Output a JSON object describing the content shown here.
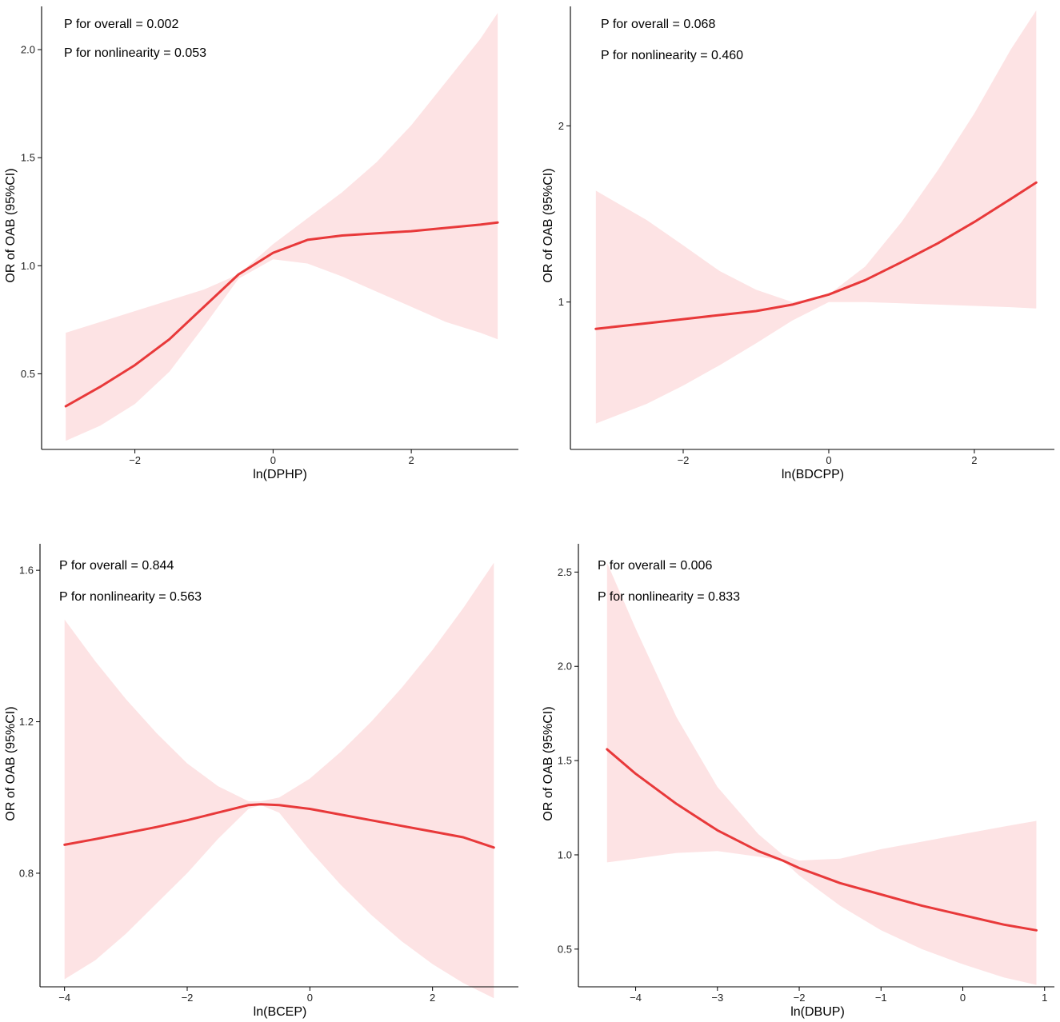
{
  "chart_data": [
    {
      "id": "dphp",
      "type": "line",
      "xlabel": "ln(DPHP)",
      "ylabel": "OR of OAB (95%CI)",
      "xlim": [
        -3.35,
        3.55
      ],
      "ylim": [
        0.15,
        2.2
      ],
      "yscale": "linear",
      "xticks": [
        -2,
        0,
        2
      ],
      "xtick_labels": [
        "−2",
        "0",
        "2"
      ],
      "yticks": [
        0.5,
        1.0,
        1.5,
        2.0
      ],
      "ytick_labels": [
        "0.5",
        "1.0",
        "1.5",
        "2.0"
      ],
      "annotations": [
        "P for overall = 0.002",
        "P for nonlinearity = 0.053"
      ],
      "band_color": "#fde3e4",
      "line_color": "#e8393a",
      "series": [
        {
          "name": "OR",
          "x": [
            -3.0,
            -2.5,
            -2.0,
            -1.5,
            -1.0,
            -0.5,
            0.0,
            0.5,
            1.0,
            1.5,
            2.0,
            2.5,
            3.0,
            3.25
          ],
          "y": [
            0.35,
            0.44,
            0.54,
            0.66,
            0.81,
            0.96,
            1.06,
            1.12,
            1.14,
            1.15,
            1.16,
            1.175,
            1.19,
            1.2
          ]
        },
        {
          "name": "Upper 95%CI",
          "x": [
            -3.0,
            -2.5,
            -2.0,
            -1.5,
            -1.0,
            -0.5,
            0.0,
            0.5,
            1.0,
            1.5,
            2.0,
            2.5,
            3.0,
            3.25
          ],
          "y": [
            0.69,
            0.74,
            0.79,
            0.84,
            0.89,
            0.96,
            1.1,
            1.22,
            1.34,
            1.48,
            1.65,
            1.85,
            2.05,
            2.17
          ]
        },
        {
          "name": "Lower 95%CI",
          "x": [
            -3.0,
            -2.5,
            -2.0,
            -1.5,
            -1.0,
            -0.5,
            0.0,
            0.5,
            1.0,
            1.5,
            2.0,
            2.5,
            3.0,
            3.25
          ],
          "y": [
            0.19,
            0.26,
            0.36,
            0.51,
            0.72,
            0.94,
            1.03,
            1.01,
            0.95,
            0.88,
            0.81,
            0.74,
            0.69,
            0.66
          ]
        }
      ]
    },
    {
      "id": "bdcpp",
      "type": "line",
      "xlabel": "ln(BDCPP)",
      "ylabel": "OR of OAB (95%CI)",
      "xlim": [
        -3.55,
        3.1
      ],
      "ylim": [
        0.56,
        3.2
      ],
      "yscale": "log",
      "xticks": [
        -2,
        0,
        2
      ],
      "xtick_labels": [
        "−2",
        "0",
        "2"
      ],
      "yticks": [
        1,
        2
      ],
      "ytick_labels": [
        "1",
        "2"
      ],
      "annotations": [
        "P for overall = 0.068",
        "P for nonlinearity = 0.460"
      ],
      "band_color": "#fde3e4",
      "line_color": "#e8393a",
      "series": [
        {
          "name": "OR",
          "x": [
            -3.2,
            -2.5,
            -2.0,
            -1.5,
            -1.0,
            -0.5,
            0.0,
            0.5,
            1.0,
            1.5,
            2.0,
            2.5,
            2.85
          ],
          "y": [
            0.9,
            0.92,
            0.935,
            0.95,
            0.965,
            0.99,
            1.03,
            1.09,
            1.17,
            1.26,
            1.37,
            1.5,
            1.6
          ]
        },
        {
          "name": "Upper 95%CI",
          "x": [
            -3.2,
            -2.5,
            -2.0,
            -1.5,
            -1.0,
            -0.5,
            0.0,
            0.5,
            1.0,
            1.5,
            2.0,
            2.5,
            2.85
          ],
          "y": [
            1.55,
            1.38,
            1.25,
            1.13,
            1.05,
            1.0,
            1.03,
            1.15,
            1.37,
            1.68,
            2.1,
            2.7,
            3.15
          ]
        },
        {
          "name": "Lower 95%CI",
          "x": [
            -3.2,
            -2.5,
            -2.0,
            -1.5,
            -1.0,
            -0.5,
            0.0,
            0.5,
            1.0,
            1.5,
            2.0,
            2.5,
            2.85
          ],
          "y": [
            0.62,
            0.67,
            0.72,
            0.78,
            0.85,
            0.93,
            1.0,
            1.0,
            0.995,
            0.99,
            0.985,
            0.98,
            0.975
          ]
        }
      ]
    },
    {
      "id": "bcep",
      "type": "line",
      "xlabel": "ln(BCEP)",
      "ylabel": "OR of OAB (95%CI)",
      "xlim": [
        -4.4,
        3.4
      ],
      "ylim": [
        0.5,
        1.67
      ],
      "yscale": "linear",
      "xticks": [
        -4,
        -2,
        0,
        2
      ],
      "xtick_labels": [
        "−4",
        "−2",
        "0",
        "2"
      ],
      "yticks": [
        0.8,
        1.2,
        1.6
      ],
      "ytick_labels": [
        "0.8",
        "1.2",
        "1.6"
      ],
      "annotations": [
        "P for overall = 0.844",
        "P for nonlinearity = 0.563"
      ],
      "band_color": "#fde3e4",
      "line_color": "#e8393a",
      "series": [
        {
          "name": "OR",
          "x": [
            -4.0,
            -3.5,
            -3.0,
            -2.5,
            -2.0,
            -1.5,
            -1.0,
            -0.8,
            -0.5,
            0.0,
            0.5,
            1.0,
            1.5,
            2.0,
            2.5,
            3.0
          ],
          "y": [
            0.875,
            0.89,
            0.906,
            0.922,
            0.94,
            0.96,
            0.98,
            0.982,
            0.98,
            0.97,
            0.955,
            0.94,
            0.925,
            0.91,
            0.895,
            0.868
          ]
        },
        {
          "name": "Upper 95%CI",
          "x": [
            -4.0,
            -3.5,
            -3.0,
            -2.5,
            -2.0,
            -1.5,
            -1.0,
            -0.8,
            -0.5,
            0.0,
            0.5,
            1.0,
            1.5,
            2.0,
            2.5,
            3.0
          ],
          "y": [
            1.47,
            1.36,
            1.26,
            1.17,
            1.09,
            1.03,
            0.99,
            0.99,
            1.0,
            1.05,
            1.12,
            1.2,
            1.29,
            1.39,
            1.5,
            1.62
          ]
        },
        {
          "name": "Lower 95%CI",
          "x": [
            -4.0,
            -3.5,
            -3.0,
            -2.5,
            -2.0,
            -1.5,
            -1.0,
            -0.8,
            -0.5,
            0.0,
            0.5,
            1.0,
            1.5,
            2.0,
            2.5,
            3.0
          ],
          "y": [
            0.52,
            0.57,
            0.64,
            0.72,
            0.8,
            0.89,
            0.97,
            0.98,
            0.96,
            0.86,
            0.77,
            0.69,
            0.62,
            0.56,
            0.51,
            0.47
          ]
        }
      ]
    },
    {
      "id": "dbup",
      "type": "line",
      "xlabel": "ln(DBUP)",
      "ylabel": "OR of OAB (95%CI)",
      "xlim": [
        -4.7,
        1.12
      ],
      "ylim": [
        0.3,
        2.65
      ],
      "yscale": "linear",
      "xticks": [
        -4,
        -3,
        -2,
        -1,
        0,
        1
      ],
      "xtick_labels": [
        "−4",
        "−3",
        "−2",
        "−1",
        "0",
        "1"
      ],
      "yticks": [
        0.5,
        1.0,
        1.5,
        2.0,
        2.5
      ],
      "ytick_labels": [
        "0.5",
        "1.0",
        "1.5",
        "2.0",
        "2.5"
      ],
      "annotations": [
        "P for overall = 0.006",
        "P for nonlinearity = 0.833"
      ],
      "band_color": "#fde3e4",
      "line_color": "#e8393a",
      "series": [
        {
          "name": "OR",
          "x": [
            -4.35,
            -4.0,
            -3.5,
            -3.0,
            -2.5,
            -2.2,
            -2.0,
            -1.5,
            -1.0,
            -0.5,
            0.0,
            0.5,
            0.9
          ],
          "y": [
            1.56,
            1.43,
            1.27,
            1.13,
            1.02,
            0.97,
            0.93,
            0.85,
            0.79,
            0.73,
            0.68,
            0.63,
            0.6
          ]
        },
        {
          "name": "Upper 95%CI",
          "x": [
            -4.35,
            -4.0,
            -3.5,
            -3.0,
            -2.5,
            -2.2,
            -2.0,
            -1.5,
            -1.0,
            -0.5,
            0.0,
            0.5,
            0.9
          ],
          "y": [
            2.55,
            2.2,
            1.73,
            1.36,
            1.11,
            1.0,
            0.97,
            0.98,
            1.03,
            1.07,
            1.11,
            1.15,
            1.18
          ]
        },
        {
          "name": "Lower 95%CI",
          "x": [
            -4.35,
            -4.0,
            -3.5,
            -3.0,
            -2.5,
            -2.2,
            -2.0,
            -1.5,
            -1.0,
            -0.5,
            0.0,
            0.5,
            0.9
          ],
          "y": [
            0.96,
            0.98,
            1.01,
            1.02,
            0.99,
            0.97,
            0.89,
            0.73,
            0.6,
            0.5,
            0.42,
            0.35,
            0.31
          ]
        }
      ]
    }
  ]
}
